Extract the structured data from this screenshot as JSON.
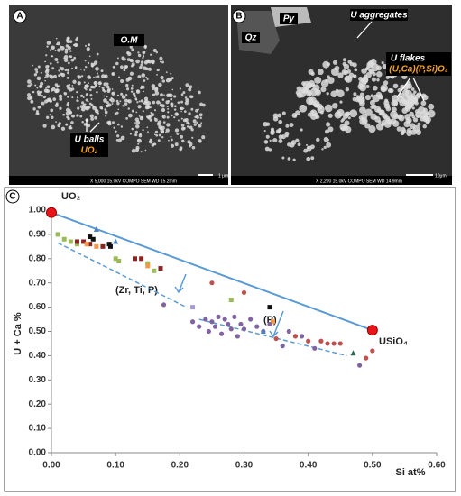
{
  "panels": [
    {
      "label": "A",
      "annotations": [
        "O.M",
        "U balls",
        "UO₂"
      ],
      "scale": "1 μm",
      "footer": "X 5,000   15.0kV COMPO  SEM    WD 15.2mm"
    },
    {
      "label": "B",
      "annotations": [
        "Qz",
        "Py",
        "U aggregates",
        "U flakes",
        "(U,Ca)(P,Si)O₄"
      ],
      "scale": "10μm",
      "footer": "X 2,200   15.0kV COMPO  SEM    WD 14.9mm"
    }
  ],
  "chart_data": {
    "type": "scatter",
    "panel_label": "C",
    "xlabel": "Si at%",
    "ylabel": "U + Ca %",
    "annotations": [
      "UO₂",
      "USiO₄",
      "(Zr, Ti, P)",
      "(P)"
    ],
    "xlim": [
      0,
      0.6
    ],
    "xticks": [
      {
        "value": 0,
        "label": "0.00"
      },
      {
        "value": 0.1,
        "label": "0.10"
      },
      {
        "value": 0.2,
        "label": "0.20"
      },
      {
        "value": 0.3,
        "label": "0.30"
      },
      {
        "value": 0.4,
        "label": "0.40"
      },
      {
        "value": 0.5,
        "label": "0.50"
      },
      {
        "value": 0.6,
        "label": "0.60"
      }
    ],
    "ylim": [
      0,
      1.0
    ],
    "yticks": [
      {
        "value": 0,
        "label": "0.00"
      },
      {
        "value": 0.1,
        "label": "0.10"
      },
      {
        "value": 0.2,
        "label": "0.20"
      },
      {
        "value": 0.3,
        "label": "0.30"
      },
      {
        "value": 0.4,
        "label": "0.40"
      },
      {
        "value": 0.5,
        "label": "0.50"
      },
      {
        "value": 0.6,
        "label": "0.60"
      },
      {
        "value": 0.7,
        "label": "0.70"
      },
      {
        "value": 0.8,
        "label": "0.80"
      },
      {
        "value": 0.9,
        "label": "0.90"
      },
      {
        "value": 1.0,
        "label": "1.00"
      }
    ],
    "lines": [
      {
        "x": [
          0,
          0.5
        ],
        "values": [
          0.99,
          0.505
        ],
        "color": "#5b9bd5",
        "dashed": false
      },
      {
        "x": [
          0.01,
          0.21
        ],
        "values": [
          0.865,
          0.6
        ],
        "color": "#5b9bd5",
        "dashed": true
      },
      {
        "x": [
          0.23,
          0.46
        ],
        "values": [
          0.55,
          0.4
        ],
        "color": "#5b9bd5",
        "dashed": true
      }
    ],
    "endpoints": {
      "x": [
        0,
        0.5
      ],
      "values": [
        0.99,
        0.505
      ],
      "color": "#e8141a"
    },
    "series": [
      {
        "color": "#9bbb59",
        "marker": "square",
        "x": [
          0.01,
          0.02,
          0.03,
          0.04,
          0.1,
          0.105,
          0.15,
          0.16,
          0.28
        ],
        "values": [
          0.9,
          0.88,
          0.87,
          0.86,
          0.8,
          0.79,
          0.78,
          0.75,
          0.63
        ]
      },
      {
        "color": "#8b2323",
        "marker": "square",
        "x": [
          0.04,
          0.05,
          0.06,
          0.08,
          0.13,
          0.14,
          0.17
        ],
        "values": [
          0.87,
          0.87,
          0.86,
          0.85,
          0.8,
          0.8,
          0.76
        ]
      },
      {
        "color": "#111111",
        "marker": "square",
        "x": [
          0.06,
          0.065,
          0.09,
          0.092,
          0.34
        ],
        "values": [
          0.89,
          0.88,
          0.86,
          0.85,
          0.6
        ]
      },
      {
        "color": "#f79646",
        "marker": "square",
        "x": [
          0.055,
          0.07,
          0.15,
          0.345
        ],
        "values": [
          0.86,
          0.85,
          0.77,
          0.54
        ]
      },
      {
        "color": "#a99bd8",
        "marker": "square",
        "x": [
          0.22
        ],
        "values": [
          0.6
        ]
      },
      {
        "color": "#8064a2",
        "marker": "circle",
        "x": [
          0.175,
          0.22,
          0.23,
          0.24,
          0.245,
          0.25,
          0.255,
          0.26,
          0.265,
          0.27,
          0.275,
          0.28,
          0.285,
          0.29,
          0.295,
          0.3,
          0.31,
          0.32,
          0.33,
          0.34,
          0.36,
          0.37,
          0.39,
          0.41,
          0.48
        ],
        "values": [
          0.61,
          0.54,
          0.52,
          0.55,
          0.5,
          0.54,
          0.52,
          0.56,
          0.49,
          0.55,
          0.53,
          0.51,
          0.56,
          0.48,
          0.53,
          0.51,
          0.55,
          0.52,
          0.5,
          0.53,
          0.44,
          0.5,
          0.48,
          0.43,
          0.36
        ]
      },
      {
        "color": "#c0504d",
        "marker": "circle",
        "x": [
          0.25,
          0.3,
          0.35,
          0.38,
          0.4,
          0.42,
          0.43,
          0.44,
          0.45,
          0.49,
          0.5
        ],
        "values": [
          0.7,
          0.66,
          0.47,
          0.48,
          0.46,
          0.46,
          0.45,
          0.45,
          0.45,
          0.39,
          0.42
        ]
      },
      {
        "color": "#4f81bd",
        "marker": "triangle",
        "x": [
          0.07,
          0.1,
          0.33
        ],
        "values": [
          0.92,
          0.87,
          0.5
        ]
      },
      {
        "color": "#2e6b4f",
        "marker": "triangle",
        "x": [
          0.47
        ],
        "values": [
          0.41
        ]
      }
    ]
  }
}
